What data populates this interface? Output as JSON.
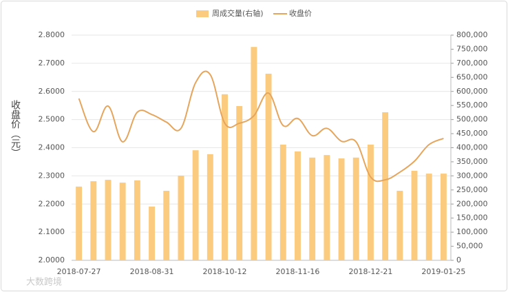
{
  "chart_data": {
    "type": "combo",
    "y_label": "收盘价（元）",
    "watermark": "大数跨境",
    "categories": [
      "2018-07-27",
      null,
      null,
      null,
      null,
      "2018-08-31",
      null,
      null,
      null,
      null,
      "2018-10-12",
      null,
      null,
      null,
      null,
      "2018-11-16",
      null,
      null,
      null,
      null,
      "2018-12-21",
      null,
      null,
      null,
      null,
      "2019-01-25"
    ],
    "series": [
      {
        "name": "周成交量(右轴)",
        "type": "bar",
        "axis": "y2",
        "color": "#fbcb7f",
        "values": [
          262000,
          281000,
          286000,
          276000,
          284000,
          191000,
          247000,
          301000,
          391000,
          377000,
          590000,
          548000,
          758000,
          663000,
          411000,
          387000,
          365000,
          374000,
          362000,
          365000,
          411000,
          526000,
          247000,
          318000,
          308000,
          308000
        ]
      },
      {
        "name": "收盘价",
        "type": "line",
        "color": "#e5a55c",
        "values": [
          2.575,
          2.457,
          2.548,
          2.421,
          2.526,
          2.518,
          2.491,
          2.469,
          2.631,
          2.66,
          2.487,
          2.487,
          2.514,
          2.594,
          2.479,
          2.504,
          2.443,
          2.469,
          2.423,
          2.421,
          2.296,
          2.286,
          2.313,
          2.352,
          2.411,
          2.433
        ]
      }
    ],
    "ylim": [
      2.0,
      2.8
    ],
    "yticks": [
      {
        "value": 2.0,
        "label": "2.0000"
      },
      {
        "value": 2.1,
        "label": "2.1000"
      },
      {
        "value": 2.2,
        "label": "2.2000"
      },
      {
        "value": 2.3,
        "label": "2.3000"
      },
      {
        "value": 2.4,
        "label": "2.4000"
      },
      {
        "value": 2.5,
        "label": "2.5000"
      },
      {
        "value": 2.6,
        "label": "2.6000"
      },
      {
        "value": 2.7,
        "label": "2.7000"
      },
      {
        "value": 2.8,
        "label": "2.8000"
      }
    ],
    "y2lim": [
      0,
      800000
    ],
    "y2ticks": [
      0,
      {
        "value": 50000,
        "label": "50,000"
      },
      {
        "value": 100000,
        "label": "100,000"
      },
      {
        "value": 150000,
        "label": "150,000"
      },
      {
        "value": 200000,
        "label": "200,000"
      },
      {
        "value": 250000,
        "label": "250,000"
      },
      {
        "value": 300000,
        "label": "300,000"
      },
      {
        "value": 350000,
        "label": "350,000"
      },
      {
        "value": 400000,
        "label": "400,000"
      },
      {
        "value": 450000,
        "label": "450,000"
      },
      {
        "value": 500000,
        "label": "500,000"
      },
      {
        "value": 550000,
        "label": "550,000"
      },
      {
        "value": 600000,
        "label": "600,000"
      },
      {
        "value": 650000,
        "label": "650,000"
      },
      {
        "value": 700000,
        "label": "700,000"
      },
      {
        "value": 750000,
        "label": "750,000"
      },
      {
        "value": 800000,
        "label": "800,000"
      }
    ],
    "grid": true
  }
}
